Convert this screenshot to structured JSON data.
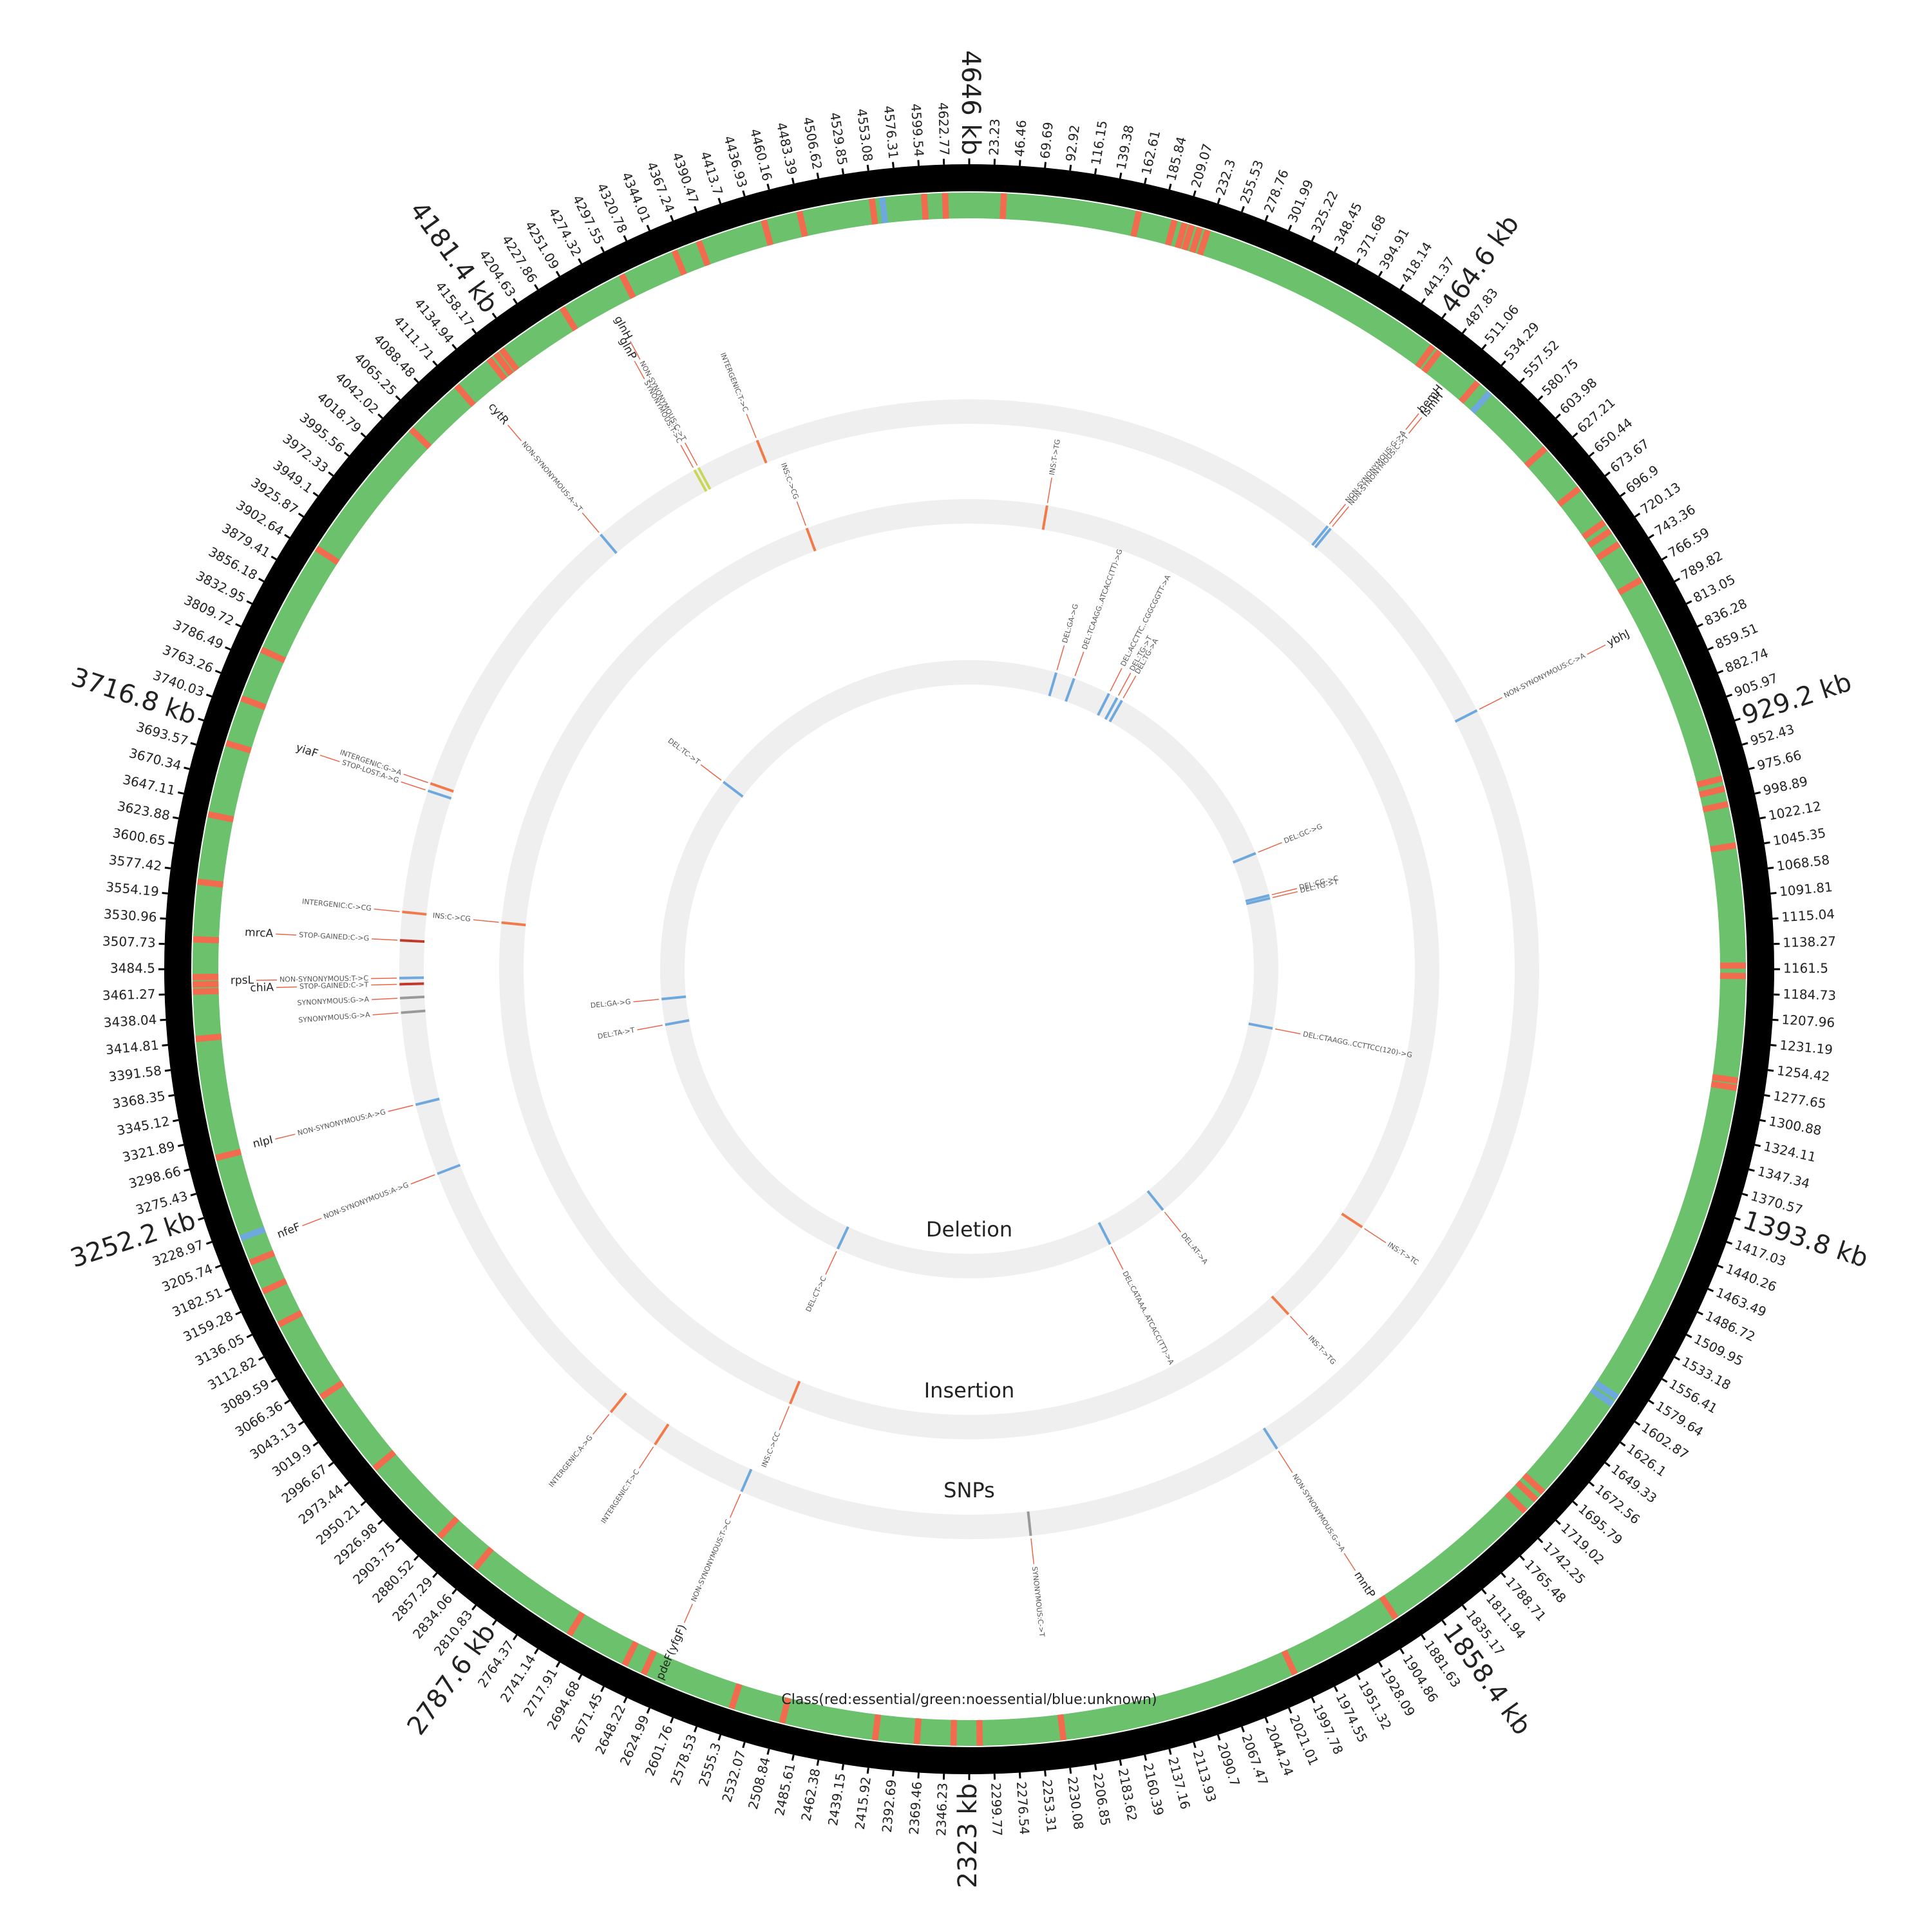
{
  "chart_data": {
    "type": "circos",
    "xlim": [
      0,
      4646
    ],
    "xticks": [
      {
        "value": 4646,
        "label": "4646 kb"
      },
      23.23,
      46.46,
      69.69,
      92.92,
      116.15,
      139.38,
      162.61,
      185.84,
      209.07,
      232.3,
      255.53,
      278.76,
      301.99,
      325.22,
      348.45,
      371.68,
      394.91,
      418.14,
      441.37,
      {
        "value": 464.6,
        "label": "464.6 kb"
      },
      487.83,
      511.06,
      534.29,
      557.52,
      580.75,
      603.98,
      627.21,
      650.44,
      673.67,
      696.9,
      720.13,
      743.36,
      766.59,
      789.82,
      813.05,
      836.28,
      859.51,
      882.74,
      905.97,
      {
        "value": 929.2,
        "label": "929.2 kb"
      },
      952.43,
      975.66,
      998.89,
      1022.12,
      1045.35,
      1068.58,
      1091.81,
      1115.04,
      1138.27,
      1161.5,
      1184.73,
      1207.96,
      1231.19,
      1254.42,
      1277.65,
      1300.88,
      1324.11,
      1347.34,
      1370.57,
      {
        "value": 1393.8,
        "label": "1393.8 kb"
      },
      1417.03,
      1440.26,
      1463.49,
      1486.72,
      1509.95,
      1533.18,
      1556.41,
      1579.64,
      1602.87,
      1626.1,
      1649.33,
      1672.56,
      1695.79,
      1719.02,
      1742.25,
      1765.48,
      1788.71,
      1811.94,
      1835.17,
      {
        "value": 1858.4,
        "label": "1858.4 kb"
      },
      1881.63,
      1904.86,
      1928.09,
      1951.32,
      1974.55,
      1997.78,
      2021.01,
      2044.24,
      2067.47,
      2090.7,
      2113.93,
      2137.16,
      2160.39,
      2183.62,
      2206.85,
      2230.08,
      2253.31,
      2276.54,
      2299.77,
      {
        "value": 2323,
        "label": "2323 kb"
      },
      2346.23,
      2369.46,
      2392.69,
      2415.92,
      2439.15,
      2462.38,
      2485.61,
      2508.84,
      2532.07,
      2555.3,
      2578.53,
      2601.76,
      2624.99,
      2648.22,
      2671.45,
      2694.68,
      2717.91,
      2741.14,
      2764.37,
      {
        "value": 2787.6,
        "label": "2787.6 kb"
      },
      2810.83,
      2834.06,
      2857.29,
      2880.52,
      2903.75,
      2926.98,
      2950.21,
      2973.44,
      2996.67,
      3019.9,
      3043.13,
      3066.36,
      3089.59,
      3112.82,
      3136.05,
      3159.28,
      3182.51,
      3205.74,
      3228.97,
      {
        "value": 3252.2,
        "label": "3252.2 kb"
      },
      3275.43,
      3298.66,
      3321.89,
      3345.12,
      3368.35,
      3391.58,
      3414.81,
      3438.04,
      3461.27,
      3484.5,
      3507.73,
      3530.96,
      3554.19,
      3577.42,
      3600.65,
      3623.88,
      3647.11,
      3670.34,
      3693.57,
      {
        "value": 3716.8,
        "label": "3716.8 kb"
      },
      3740.03,
      3763.26,
      3786.49,
      3809.72,
      3832.95,
      3856.18,
      3879.41,
      3902.64,
      3925.87,
      3949.1,
      3972.33,
      3995.56,
      4018.79,
      4042.02,
      4065.25,
      4088.48,
      4111.71,
      4134.94,
      4158.17,
      {
        "value": 4181.4,
        "label": "4181.4 kb"
      },
      4204.63,
      4227.86,
      4251.09,
      4274.32,
      4297.55,
      4320.78,
      4344.01,
      4367.24,
      4390.47,
      4413.7,
      4436.93,
      4460.16,
      4483.39,
      4506.62,
      4529.85,
      4553.08,
      4576.31,
      4599.54,
      4622.77
    ],
    "class_track": {
      "title": "Class(red:essential/green:noessential/blue:unknown)",
      "color": "#6cc16c",
      "essential": {
        "color": "#f26b4f",
        "x": [
          30,
          160,
          195,
          205,
          212,
          220,
          228,
          470,
          478,
          525,
          615,
          665,
          705,
          715,
          730,
          770,
          975,
          985,
          1000,
          1040,
          1155,
          1165,
          1265,
          1272,
          1705,
          1715,
          1730,
          1890,
          2000,
          2230,
          2310,
          2335,
          2370,
          2410,
          2500,
          2550,
          2640,
          2660,
          2720,
          2830,
          2875,
          2965,
          3050,
          3130,
          3165,
          3195,
          3300,
          3415,
          3460,
          3467,
          3474,
          3510,
          3565,
          3630,
          3700,
          3745,
          3795,
          3905,
          4050,
          4110,
          4150,
          4158,
          4165,
          4235,
          4300,
          4355,
          4380,
          4445,
          4480,
          4550,
          4600,
          4620
        ]
      },
      "unknown": {
        "color": "#6fa8dc",
        "x": [
          540,
          1590,
          1598,
          3220,
          4560
        ]
      }
    },
    "tracks": [
      {
        "title": "SNPs",
        "color": "#efefef",
        "marks": [
          {
            "x": 503,
            "color": "#6fa8dc",
            "annotation": "NON-SYNONYMOUS:G->A",
            "gene": "hemH"
          },
          {
            "x": 508,
            "color": "#6fa8dc",
            "annotation": "NON-SYNONYMOUS:C->T",
            "gene": "lsmH"
          },
          {
            "x": 813,
            "color": "#6fa8dc",
            "annotation": "NON-SYNONYMOUS:C->A",
            "gene": "ybhJ"
          },
          {
            "x": 1901,
            "color": "#6fa8dc",
            "annotation": "NON-SYNONYMOUS:G->A",
            "gene": "mntP"
          },
          {
            "x": 2243,
            "color": "#999999",
            "annotation": "SYNONYMOUS:C->T"
          },
          {
            "x": 2627,
            "color": "#6fa8dc",
            "annotation": "NON-SYNONYMOUS:T->C",
            "gene": "pdeF(yfgF)"
          },
          {
            "x": 2755,
            "color": "#f07a4a",
            "annotation": "INTERGENIC:T->C"
          },
          {
            "x": 2826,
            "color": "#f07a4a",
            "annotation": "INTERGENIC:A->G"
          },
          {
            "x": 3213,
            "color": "#6fa8dc",
            "annotation": "NON-SYNONYMOUS:A->G",
            "gene": "nfeF"
          },
          {
            "x": 3307,
            "color": "#6fa8dc",
            "annotation": "NON-SYNONYMOUS:A->G",
            "gene": "nlpI"
          },
          {
            "x": 3428,
            "color": "#999999",
            "annotation": "SYNONYMOUS:G->A"
          },
          {
            "x": 3447,
            "color": "#999999",
            "annotation": "SYNONYMOUS:G->A"
          },
          {
            "x": 3465,
            "color": "#c0392b",
            "annotation": "STOP-GAINED:C->T",
            "gene": "chiA"
          },
          {
            "x": 3473,
            "color": "#6fa8dc",
            "annotation": "NON-SYNONYMOUS:T->C",
            "gene": "rpsL"
          },
          {
            "x": 3522,
            "color": "#c0392b",
            "annotation": "STOP-GAINED:C->G",
            "gene": "mrcA"
          },
          {
            "x": 3559,
            "color": "#f07a4a",
            "annotation": "INTERGENIC:C->CG"
          },
          {
            "x": 3720,
            "color": "#6fa8dc",
            "annotation": "STOP-LOST:A->G",
            "gene": "yiaF"
          },
          {
            "x": 3730,
            "color": "#f07a4a",
            "annotation": "INTERGENIC:G->A"
          },
          {
            "x": 4126,
            "color": "#6fa8dc",
            "annotation": "NON-SYNONYMOUS:A->T",
            "gene": "cytR"
          },
          {
            "x": 4274,
            "color": "#c9d65a",
            "annotation": "SYNONYMOUS:T->C",
            "gene": "glnP"
          },
          {
            "x": 4280,
            "color": "#c9d65a",
            "annotation": "NON-SYNONYMOUS:C->T",
            "gene": "glnH"
          },
          {
            "x": 4364,
            "color": "#f07a4a",
            "annotation": "INTERGENIC:T->C"
          }
        ]
      },
      {
        "title": "Insertion",
        "color": "#efefef",
        "marks": [
          {
            "x": 123,
            "color": "#f07a4a",
            "annotation": "INS:T->TG"
          },
          {
            "x": 1591,
            "color": "#f07a4a",
            "annotation": "INS:T->TC"
          },
          {
            "x": 1771,
            "color": "#f07a4a",
            "annotation": "INS:T->TG"
          },
          {
            "x": 2612,
            "color": "#f07a4a",
            "annotation": "INS:C->CC"
          },
          {
            "x": 3558,
            "color": "#f07a4a",
            "annotation": "INS:C->CG"
          },
          {
            "x": 4385,
            "color": "#f07a4a",
            "annotation": "INS:C->CG"
          }
        ]
      },
      {
        "title": "Deletion",
        "color": "#efefef",
        "marks": [
          {
            "x": 211,
            "color": "#6fa8dc",
            "annotation": "DEL:GA->G"
          },
          {
            "x": 256,
            "color": "#6fa8dc",
            "annotation": "DEL:TCAAGG..ATCACC(TT)->G"
          },
          {
            "x": 347,
            "color": "#6fa8dc",
            "annotation": "DEL:ACCTTC..CGGCGGTT->A"
          },
          {
            "x": 369,
            "color": "#6fa8dc",
            "annotation": "DEL:TG->T"
          },
          {
            "x": 382,
            "color": "#6fa8dc",
            "annotation": "DEL:TG->A"
          },
          {
            "x": 877,
            "color": "#6fa8dc",
            "annotation": "DEL:GC->G"
          },
          {
            "x": 983,
            "color": "#6fa8dc",
            "annotation": "DEL:CG->C"
          },
          {
            "x": 990,
            "color": "#6fa8dc",
            "annotation": "DEL:TG->T"
          },
          {
            "x": 1304,
            "color": "#6fa8dc",
            "annotation": "DEL:CTAAGG..CCTTCC(120)->G"
          },
          {
            "x": 1822,
            "color": "#6fa8dc",
            "annotation": "DEL:AT->A"
          },
          {
            "x": 1973,
            "color": "#6fa8dc",
            "annotation": "DEL:CATAAA..ATCACC(TT)->A"
          },
          {
            "x": 2648,
            "color": "#6fa8dc",
            "annotation": "DEL:CT->C"
          },
          {
            "x": 3351,
            "color": "#6fa8dc",
            "annotation": "DEL:TA->T"
          },
          {
            "x": 3413,
            "color": "#6fa8dc",
            "annotation": "DEL:GA->G"
          },
          {
            "x": 3966,
            "color": "#6fa8dc",
            "annotation": "DEL:TC->T"
          }
        ]
      }
    ]
  }
}
